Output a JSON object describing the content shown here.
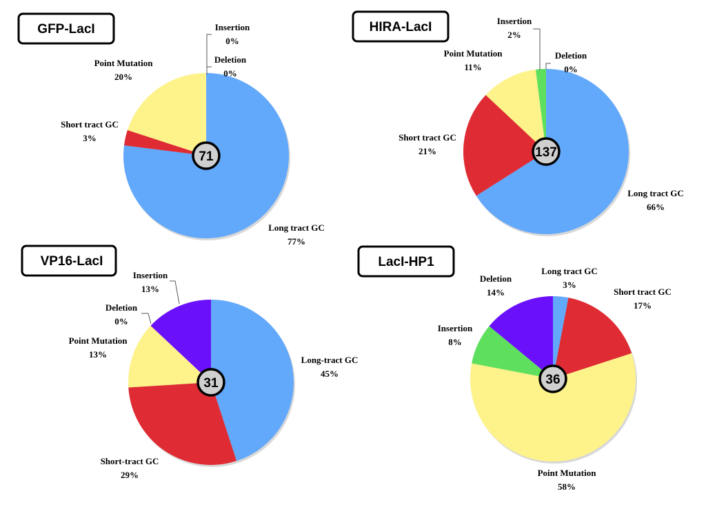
{
  "chart_data": [
    {
      "type": "pie",
      "title": "GFP-LacI",
      "total": "71",
      "slices": [
        {
          "label": "Long tract GC",
          "value": 77,
          "pct": "77%",
          "color": "#62a8fb"
        },
        {
          "label": "Short tract GC",
          "value": 3,
          "pct": "3%",
          "color": "#df2b33"
        },
        {
          "label": "Point Mutation",
          "value": 20,
          "pct": "20%",
          "color": "#fdf38a"
        },
        {
          "label": "Insertion",
          "value": 0,
          "pct": "0%",
          "color": "#5ee05e"
        },
        {
          "label": "Deletion",
          "value": 0,
          "pct": "0%",
          "color": "#6a10fb"
        }
      ]
    },
    {
      "type": "pie",
      "title": "HIRA-LacI",
      "total": "137",
      "slices": [
        {
          "label": "Long tract GC",
          "value": 66,
          "pct": "66%",
          "color": "#62a8fb"
        },
        {
          "label": "Short tract GC",
          "value": 21,
          "pct": "21%",
          "color": "#df2b33"
        },
        {
          "label": "Point Mutation",
          "value": 11,
          "pct": "11%",
          "color": "#fdf38a"
        },
        {
          "label": "Insertion",
          "value": 2,
          "pct": "2%",
          "color": "#5ee05e"
        },
        {
          "label": "Deletion",
          "value": 0,
          "pct": "0%",
          "color": "#6a10fb"
        }
      ]
    },
    {
      "type": "pie",
      "title": "VP16-LacI",
      "total": "31",
      "slices": [
        {
          "label": "Long-tract GC",
          "value": 45,
          "pct": "45%",
          "color": "#62a8fb"
        },
        {
          "label": "Short-tract GC",
          "value": 29,
          "pct": "29%",
          "color": "#df2b33"
        },
        {
          "label": "Point Mutation",
          "value": 13,
          "pct": "13%",
          "color": "#fdf38a"
        },
        {
          "label": "Deletion",
          "value": 0,
          "pct": "0%",
          "color": "#5ee05e"
        },
        {
          "label": "Insertion",
          "value": 13,
          "pct": "13%",
          "color": "#6a10fb"
        }
      ]
    },
    {
      "type": "pie",
      "title": "LacI-HP1",
      "total": "36",
      "slices": [
        {
          "label": "Long tract GC",
          "value": 3,
          "pct": "3%",
          "color": "#62a8fb"
        },
        {
          "label": "Short tract GC",
          "value": 17,
          "pct": "17%",
          "color": "#df2b33"
        },
        {
          "label": "Point Mutation",
          "value": 58,
          "pct": "58%",
          "color": "#fdf38a"
        },
        {
          "label": "Insertion",
          "value": 8,
          "pct": "8%",
          "color": "#5ee05e"
        },
        {
          "label": "Deletion",
          "value": 14,
          "pct": "14%",
          "color": "#6a10fb"
        }
      ]
    }
  ]
}
